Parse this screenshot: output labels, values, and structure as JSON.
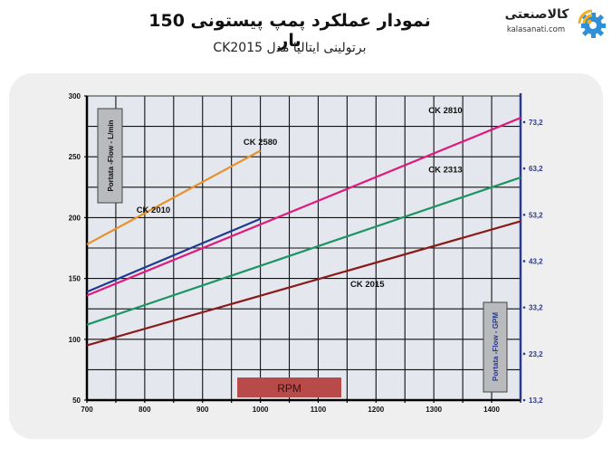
{
  "header": {
    "title": "نمودار عملکرد پمپ پیستونی 150 بار",
    "subtitle": "برتولینی ایتالیا مدل CK2015",
    "logo": {
      "name": "کالاصنعتی",
      "url": "kalasanati.com",
      "icon": "gear-wifi-icon"
    }
  },
  "chart_data": {
    "type": "line",
    "title": "نمودار عملکرد پمپ پیستونی 150 بار",
    "subtitle": "برتولینی ایتالیا مدل CK2015",
    "xlabel": "RPM",
    "ylabel": "Portata -Flow -  L/min",
    "ylabel_right": "Portata -Flow -  GPM",
    "xlim": [
      700,
      1450
    ],
    "ylim": [
      50,
      300
    ],
    "x_ticks": [
      700,
      800,
      900,
      1000,
      1100,
      1200,
      1300,
      1400
    ],
    "y_ticks": [
      50,
      100,
      150,
      200,
      250,
      300
    ],
    "y_right_ticks": [
      "13,2",
      "23,2",
      "33,2",
      "43,2",
      "53,2",
      "63,2",
      "73,2"
    ],
    "grid": true,
    "legend_position": "inline labels",
    "series": [
      {
        "name": "CK 2580",
        "color": "#e8912a",
        "x": [
          700,
          1000
        ],
        "values": [
          178,
          255
        ],
        "label_pos": [
          1000,
          260
        ]
      },
      {
        "name": "CK 2010",
        "color": "#1f3a93",
        "x": [
          700,
          1000
        ],
        "values": [
          139,
          199
        ],
        "label_pos": [
          815,
          204
        ]
      },
      {
        "name": "CK 2810",
        "color": "#e0197d",
        "x": [
          700,
          1450
        ],
        "values": [
          136,
          282
        ],
        "label_pos": [
          1320,
          286
        ]
      },
      {
        "name": "CK 2313",
        "color": "#1e9463",
        "x": [
          700,
          1450
        ],
        "values": [
          112,
          233
        ],
        "label_pos": [
          1320,
          237
        ]
      },
      {
        "name": "CK 2015",
        "color": "#8b1a1a",
        "x": [
          700,
          1450
        ],
        "values": [
          95,
          197
        ],
        "label_pos": [
          1185,
          143
        ]
      }
    ]
  },
  "chart": {
    "rpm_box_label": "RPM",
    "left_axis_box_label": "Portata -Flow -  L/min",
    "right_axis_box_label": "Portata -Flow -  GPM",
    "colors": {
      "plot_bg": "#e4e8ee",
      "grid": "#111111",
      "right_axis": "#2b3a8f",
      "rpm_box": "#b94a4a",
      "axis_box": "#b8babd"
    }
  }
}
